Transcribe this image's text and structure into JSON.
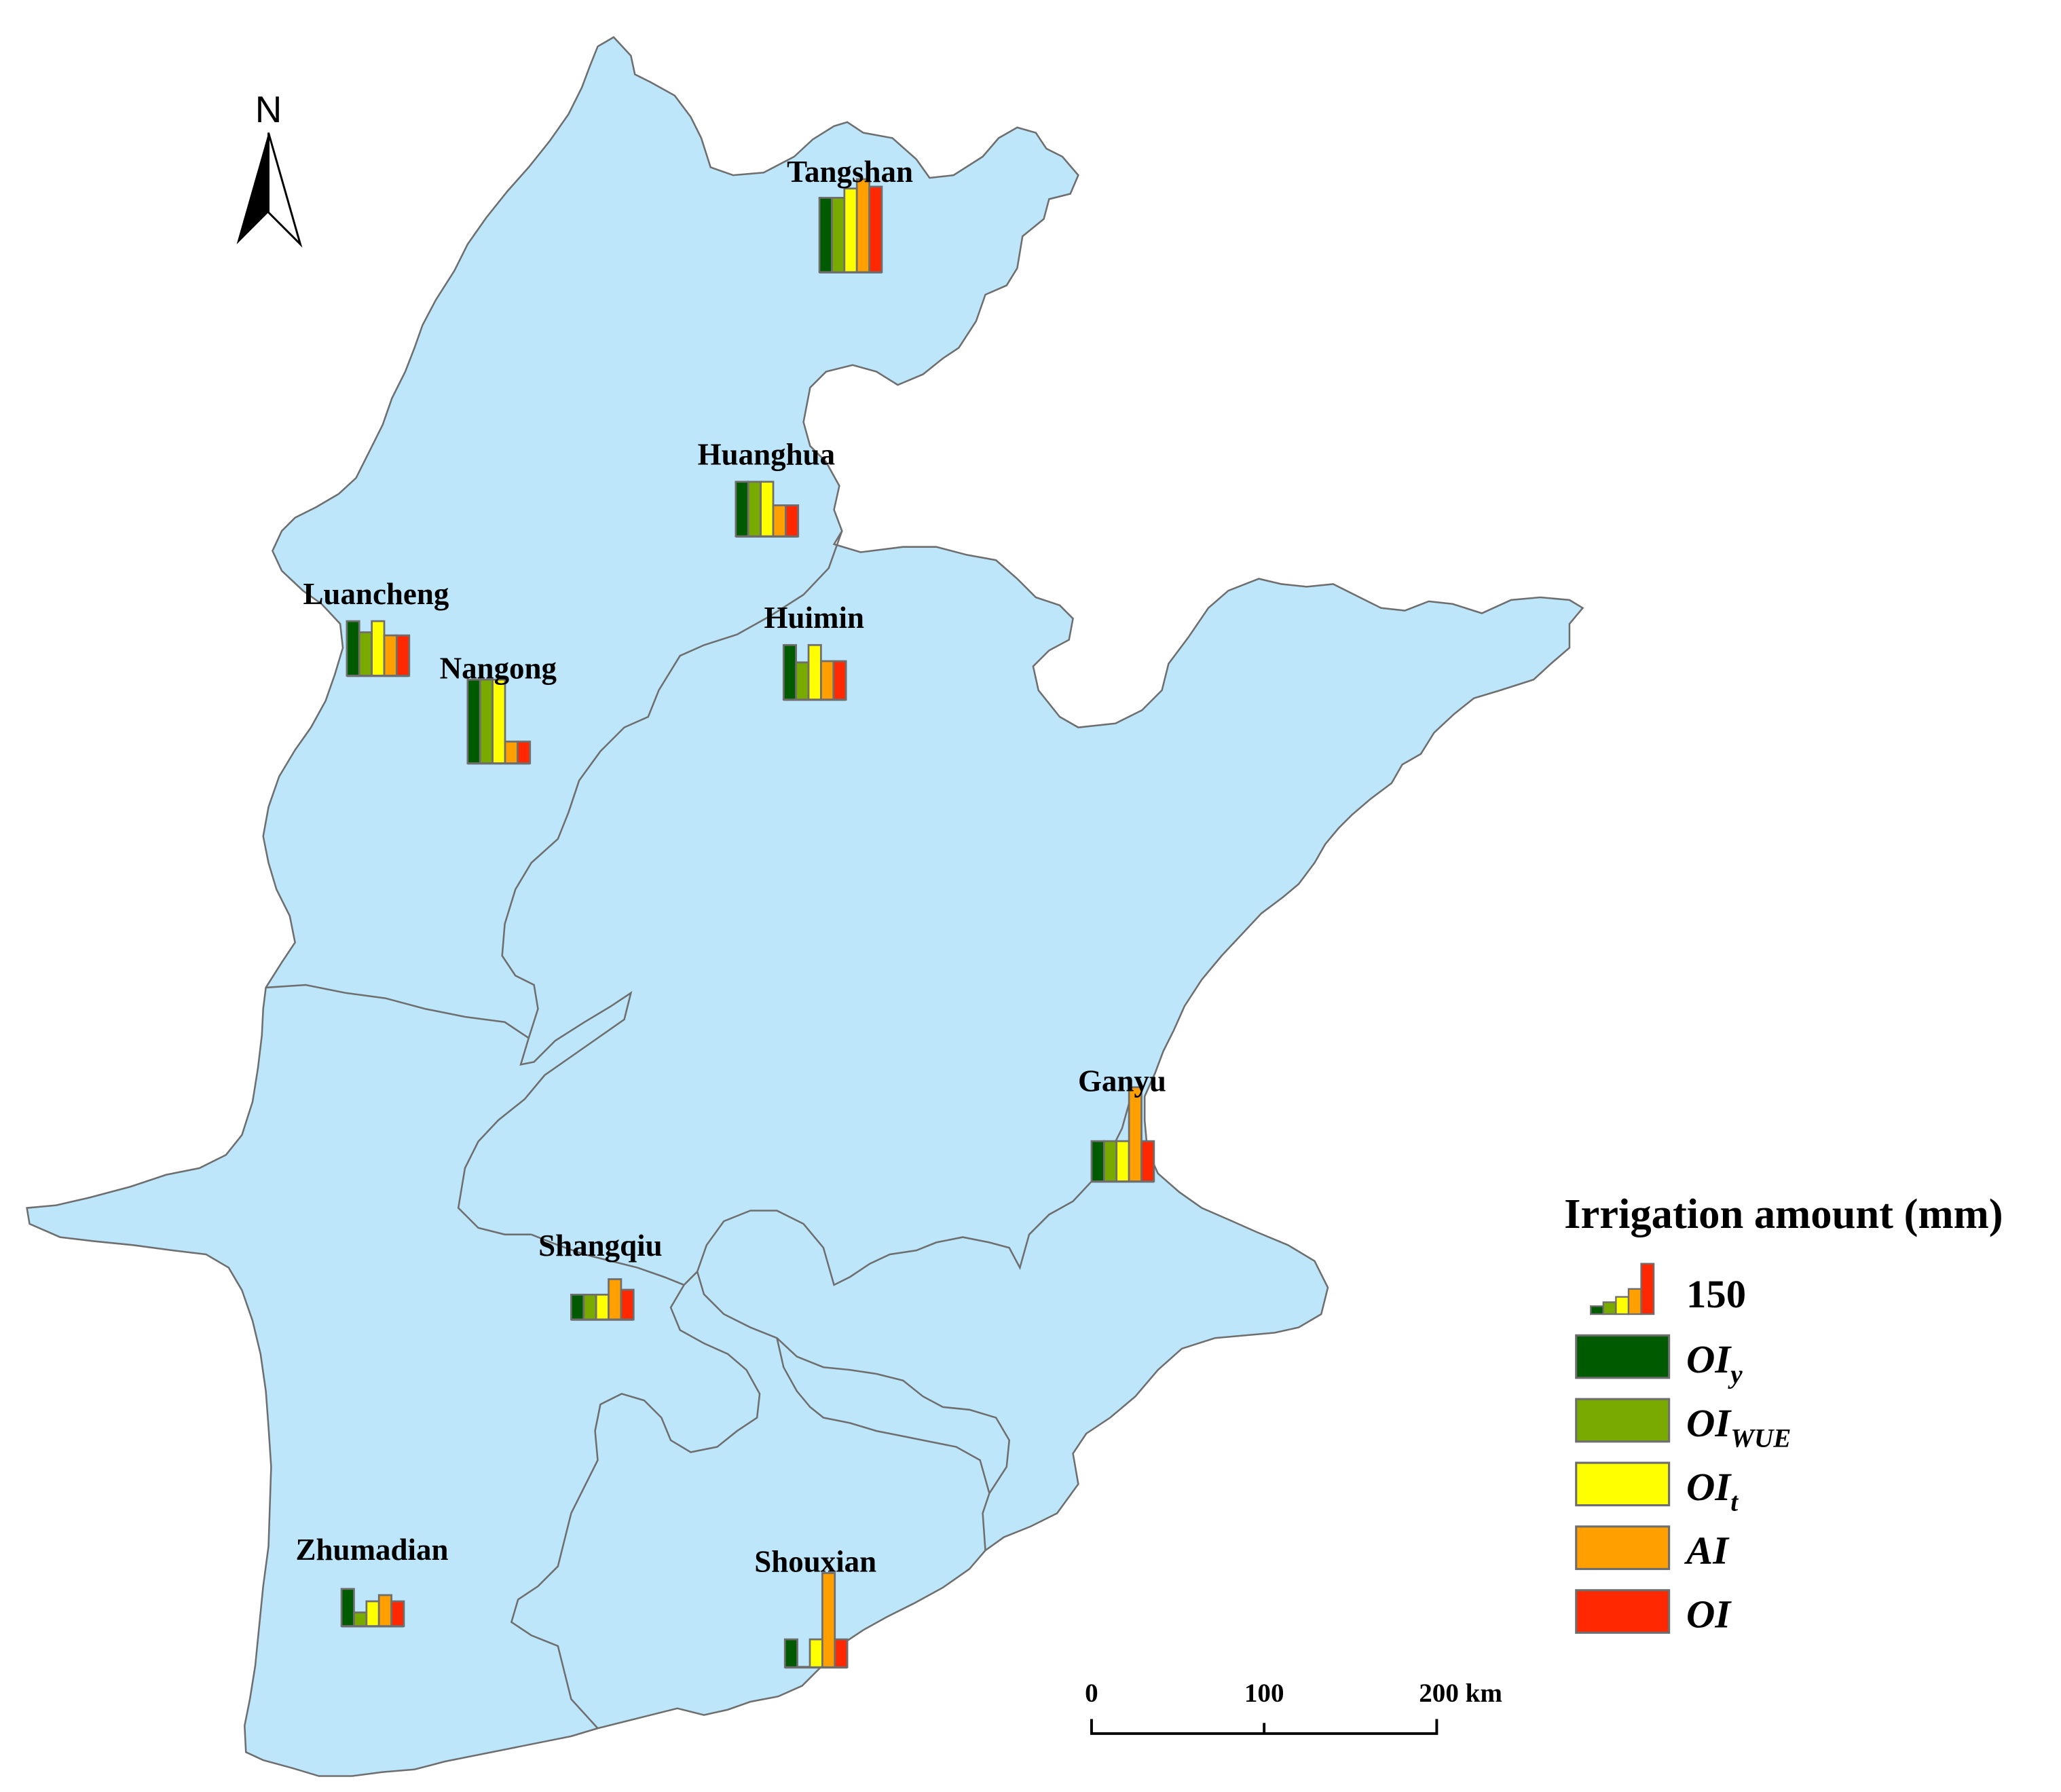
{
  "north_arrow": {
    "letter": "N"
  },
  "colors": {
    "land": "#bee6fa",
    "border": "#6e6e6e",
    "bar_outline": "#6e6e6e",
    "OIy": "#005a00",
    "OIWUE": "#78aa00",
    "OIt": "#ffff00",
    "AI": "#ffa000",
    "OI": "#ff2800"
  },
  "stations": [
    {
      "name": "Tangshan",
      "values": {
        "OIy": 120,
        "OIWUE": 120,
        "OIt": 135,
        "AI": 150,
        "OI": 138
      }
    },
    {
      "name": "Huanghua",
      "values": {
        "OIy": 88,
        "OIWUE": 88,
        "OIt": 88,
        "AI": 50,
        "OI": 50
      }
    },
    {
      "name": "Luancheng",
      "values": {
        "OIy": 88,
        "OIWUE": 70,
        "OIt": 88,
        "AI": 65,
        "OI": 65
      }
    },
    {
      "name": "Nangong",
      "values": {
        "OIy": 135,
        "OIWUE": 135,
        "OIt": 135,
        "AI": 35,
        "OI": 35
      }
    },
    {
      "name": "Huimin",
      "values": {
        "OIy": 88,
        "OIWUE": 60,
        "OIt": 88,
        "AI": 62,
        "OI": 62
      }
    },
    {
      "name": "Ganyu",
      "values": {
        "OIy": 65,
        "OIWUE": 65,
        "OIt": 65,
        "AI": 152,
        "OI": 65
      }
    },
    {
      "name": "Shangqiu",
      "values": {
        "OIy": 40,
        "OIWUE": 40,
        "OIt": 40,
        "AI": 65,
        "OI": 48
      }
    },
    {
      "name": "Zhumadian",
      "values": {
        "OIy": 60,
        "OIWUE": 22,
        "OIt": 40,
        "AI": 50,
        "OI": 40
      }
    },
    {
      "name": "Shouxian",
      "values": {
        "OIy": 45,
        "OIWUE": 0,
        "OIt": 45,
        "AI": 152,
        "OI": 45
      }
    }
  ],
  "legend": {
    "title": "Irrigation amount (mm)",
    "reference_value": "150",
    "items": [
      {
        "key": "OIy",
        "main": "OI",
        "sub": "y"
      },
      {
        "key": "OIWUE",
        "main": "OI",
        "sub": "WUE"
      },
      {
        "key": "OIt",
        "main": "OI",
        "sub": "t"
      },
      {
        "key": "AI",
        "main": "AI",
        "sub": ""
      },
      {
        "key": "OI",
        "main": "OI",
        "sub": ""
      }
    ]
  },
  "scale_bar": {
    "ticks": [
      "0",
      "100",
      "200 km"
    ]
  }
}
